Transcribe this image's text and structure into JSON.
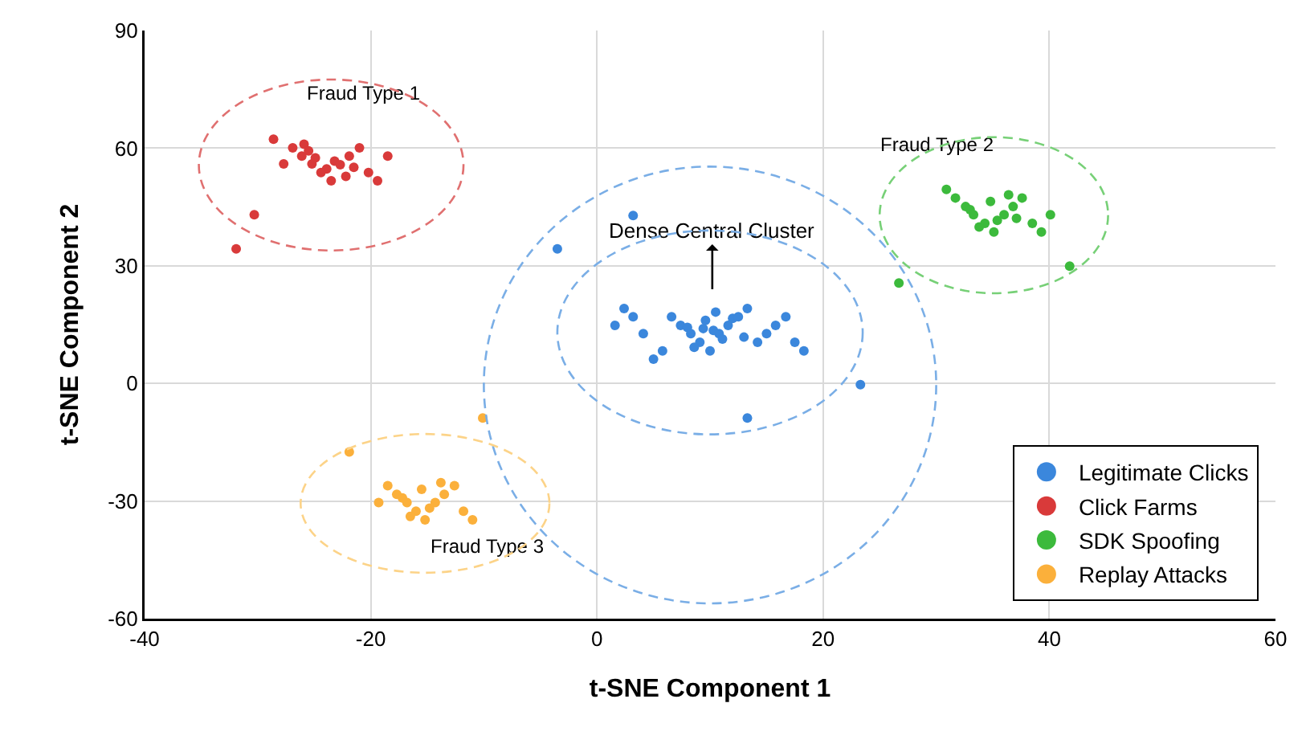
{
  "chart_data": {
    "type": "scatter",
    "xlabel": "t-SNE Component 1",
    "ylabel": "t-SNE Component 2",
    "xlim": [
      -40,
      60
    ],
    "xticks": [
      -40,
      -20,
      0,
      20,
      40,
      60
    ],
    "ylim": [
      -60,
      90
    ],
    "yticks": [
      -60,
      -30,
      0,
      30,
      60,
      90
    ],
    "grid": true,
    "legend": "bottom right",
    "marker": "circle",
    "series": [
      {
        "name": "Legitimate Clicks",
        "color": "#3b87dc",
        "x": [
          3.2,
          -3.5,
          2.4,
          3.2,
          1.6,
          4.1,
          5.8,
          5.0,
          6.6,
          7.4,
          8.0,
          8.3,
          9.6,
          9.4,
          10.5,
          10.3,
          10.8,
          11.1,
          9.1,
          8.6,
          10.0,
          11.6,
          12.0,
          12.5,
          13.3,
          13.0,
          14.2,
          15.0,
          15.8,
          16.7,
          17.5,
          18.3,
          23.3,
          13.3
        ],
        "values": [
          42.8,
          34.3,
          19.1,
          17.0,
          14.8,
          12.7,
          8.3,
          6.2,
          17.0,
          14.8,
          14.3,
          12.7,
          16.1,
          14.0,
          18.2,
          13.5,
          12.7,
          11.3,
          10.5,
          9.2,
          8.3,
          14.8,
          16.6,
          17.0,
          19.1,
          11.8,
          10.5,
          12.7,
          14.8,
          17.0,
          10.5,
          8.3,
          -0.3,
          -8.8
        ]
      },
      {
        "name": "Click Farms",
        "color": "#d93a3a",
        "x": [
          -28.6,
          -26.9,
          -25.9,
          -25.5,
          -26.1,
          -24.9,
          -27.7,
          -25.2,
          -23.2,
          -22.7,
          -23.9,
          -24.4,
          -21.9,
          -21.0,
          -18.5,
          -21.5,
          -22.2,
          -23.5,
          -20.2,
          -19.4,
          -30.3,
          -31.9
        ],
        "values": [
          62.3,
          60.1,
          61.0,
          59.3,
          58.0,
          57.5,
          56.0,
          56.0,
          56.7,
          55.8,
          54.7,
          53.8,
          58.0,
          60.1,
          58.0,
          55.1,
          52.8,
          51.7,
          53.8,
          51.7,
          43.0,
          34.3
        ]
      },
      {
        "name": "SDK Spoofing",
        "color": "#3cba3c",
        "x": [
          30.9,
          31.7,
          32.6,
          33.0,
          33.3,
          34.3,
          33.8,
          35.1,
          35.4,
          36.0,
          34.8,
          36.4,
          36.8,
          37.6,
          37.1,
          38.5,
          39.3,
          40.1,
          41.8,
          26.7
        ],
        "values": [
          49.5,
          47.3,
          45.1,
          44.3,
          43.0,
          40.8,
          39.9,
          38.6,
          41.6,
          43.0,
          46.4,
          48.1,
          45.1,
          47.3,
          42.1,
          40.8,
          38.6,
          43.0,
          29.9,
          25.6
        ]
      },
      {
        "name": "Replay Attacks",
        "color": "#fbb03b",
        "x": [
          -10.1,
          -21.9,
          -18.5,
          -19.3,
          -17.7,
          -17.2,
          -16.8,
          -15.5,
          -16.0,
          -16.5,
          -15.2,
          -14.8,
          -14.3,
          -13.5,
          -13.8,
          -12.6,
          -11.8,
          -11.0
        ],
        "values": [
          -8.8,
          -17.5,
          -26.1,
          -30.4,
          -28.3,
          -29.2,
          -30.4,
          -27.0,
          -32.6,
          -33.9,
          -34.8,
          -31.8,
          -30.4,
          -28.3,
          -25.3,
          -26.1,
          -32.6,
          -34.8
        ]
      }
    ],
    "annotations": [
      "Fraud Type 1",
      "Fraud Type 2",
      "Fraud Type 3",
      "Dense Central Cluster"
    ]
  }
}
